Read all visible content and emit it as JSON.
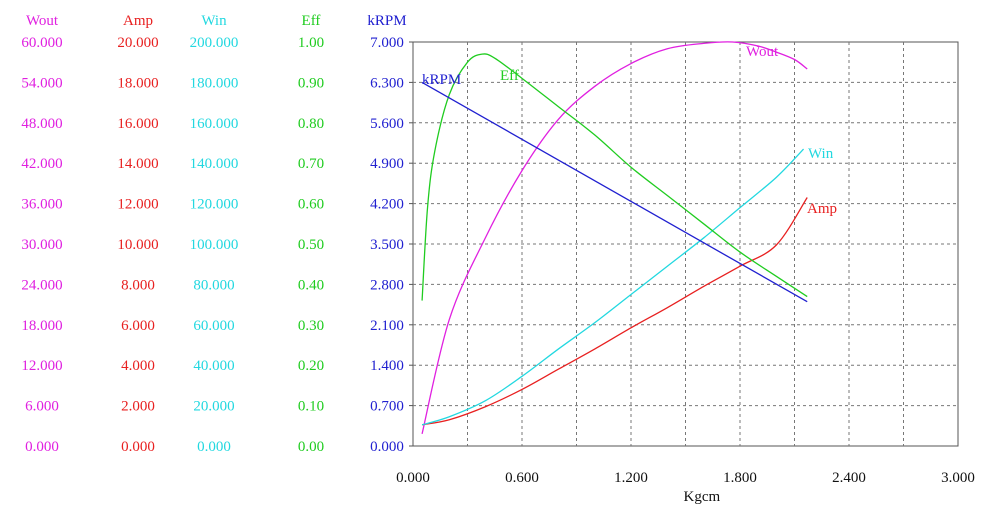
{
  "chart_data": {
    "type": "line",
    "xlabel": "Kgcm",
    "xlim": [
      0,
      3
    ],
    "x_ticks": [
      "0.000",
      "0.600",
      "1.200",
      "1.800",
      "2.400",
      "3.000"
    ],
    "grid": true,
    "axes": [
      {
        "name": "Wout",
        "color": "#e020e0",
        "ylim": [
          0,
          60
        ],
        "ticks": [
          "0.000",
          "6.000",
          "12.000",
          "18.000",
          "24.000",
          "30.000",
          "36.000",
          "42.000",
          "48.000",
          "54.000",
          "60.000"
        ]
      },
      {
        "name": "Amp",
        "color": "#e82020",
        "ylim": [
          0,
          20
        ],
        "ticks": [
          "0.000",
          "2.000",
          "4.000",
          "6.000",
          "8.000",
          "10.000",
          "12.000",
          "14.000",
          "16.000",
          "18.000",
          "20.000"
        ]
      },
      {
        "name": "Win",
        "color": "#22d8e0",
        "ylim": [
          0,
          200
        ],
        "ticks": [
          "0.000",
          "20.000",
          "40.000",
          "60.000",
          "80.000",
          "100.000",
          "120.000",
          "140.000",
          "160.000",
          "180.000",
          "200.000"
        ]
      },
      {
        "name": "Eff",
        "color": "#20cc20",
        "ylim": [
          0,
          1
        ],
        "ticks": [
          "0.00",
          "0.10",
          "0.20",
          "0.30",
          "0.40",
          "0.50",
          "0.60",
          "0.70",
          "0.80",
          "0.90",
          "1.00"
        ]
      },
      {
        "name": "kRPM",
        "color": "#2020d0",
        "ylim": [
          0,
          7
        ],
        "ticks": [
          "0.000",
          "0.700",
          "1.400",
          "2.100",
          "2.800",
          "3.500",
          "4.200",
          "4.900",
          "5.600",
          "6.300",
          "7.000"
        ]
      }
    ],
    "series": [
      {
        "name": "Wout",
        "axis": 0,
        "color": "#e020e0",
        "x": [
          0.05,
          0.2,
          0.4,
          0.6,
          0.8,
          1.0,
          1.2,
          1.4,
          1.6,
          1.76,
          1.9,
          2.0,
          2.1,
          2.17
        ],
        "y": [
          1.8,
          18.8,
          31.0,
          40.9,
          48.5,
          53.4,
          56.8,
          59.0,
          59.8,
          60.0,
          59.4,
          58.5,
          57.4,
          56.0
        ]
      },
      {
        "name": "Amp",
        "axis": 1,
        "color": "#e82020",
        "x": [
          0.05,
          0.2,
          0.4,
          0.6,
          0.8,
          1.0,
          1.2,
          1.4,
          1.6,
          1.8,
          2.0,
          2.17
        ],
        "y": [
          1.05,
          1.3,
          1.95,
          2.8,
          3.8,
          4.8,
          5.85,
          6.85,
          7.9,
          8.9,
          9.95,
          12.3
        ]
      },
      {
        "name": "Win",
        "axis": 2,
        "color": "#22d8e0",
        "x": [
          0.05,
          0.2,
          0.4,
          0.6,
          0.8,
          1.0,
          1.2,
          1.4,
          1.6,
          1.8,
          2.0,
          2.15
        ],
        "y": [
          10.5,
          14.5,
          22.5,
          34.5,
          48.0,
          61.0,
          75.0,
          89.0,
          103.0,
          118.0,
          133.0,
          147.0
        ]
      },
      {
        "name": "Eff",
        "axis": 3,
        "color": "#20cc20",
        "x": [
          0.05,
          0.08,
          0.12,
          0.2,
          0.3,
          0.38,
          0.45,
          0.6,
          0.8,
          1.0,
          1.2,
          1.4,
          1.6,
          1.8,
          2.0,
          2.17
        ],
        "y": [
          0.36,
          0.59,
          0.73,
          0.87,
          0.95,
          0.97,
          0.96,
          0.91,
          0.84,
          0.77,
          0.69,
          0.62,
          0.55,
          0.48,
          0.42,
          0.37
        ]
      },
      {
        "name": "kRPM",
        "axis": 4,
        "color": "#2020d0",
        "x": [
          0.05,
          2.17
        ],
        "y": [
          6.3,
          2.5
        ]
      }
    ]
  }
}
